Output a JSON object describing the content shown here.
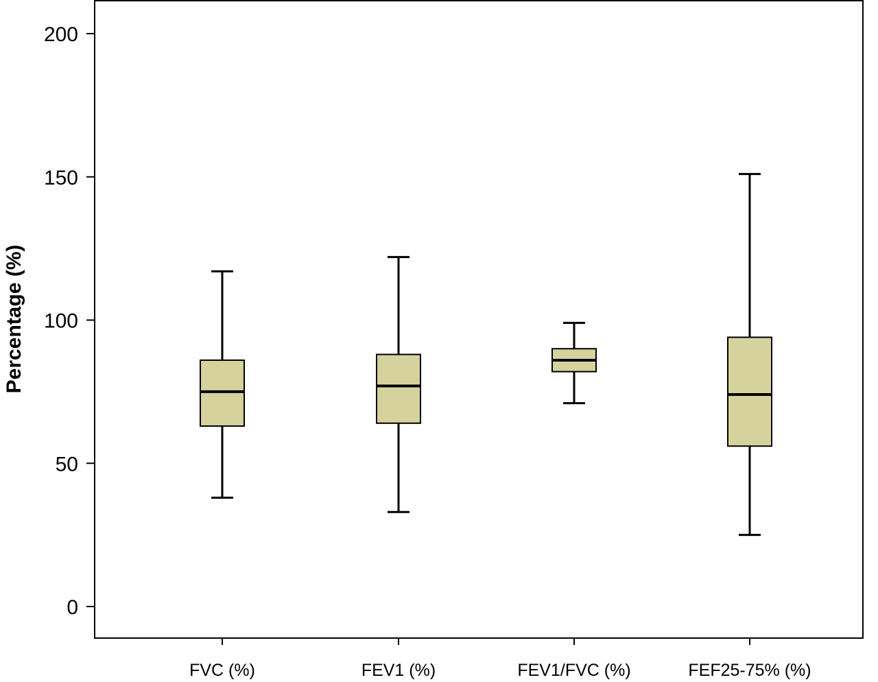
{
  "chart_data": {
    "type": "box",
    "title": "",
    "xlabel": "",
    "ylabel": "Percentage (%)",
    "ylim": [
      -10,
      210
    ],
    "yticks": [
      0,
      50,
      100,
      150,
      200
    ],
    "grid": false,
    "box_fill": "#d6d29e",
    "line_color": "#000000",
    "categories": [
      "FVC (%)",
      "FEV1 (%)",
      "FEV1/FVC (%)",
      "FEF25-75% (%)"
    ],
    "boxes": [
      {
        "label": "FVC (%)",
        "min": 38,
        "q1": 63,
        "median": 75,
        "q3": 86,
        "max": 117
      },
      {
        "label": "FEV1 (%)",
        "min": 33,
        "q1": 64,
        "median": 77,
        "q3": 88,
        "max": 122
      },
      {
        "label": "FEV1/FVC (%)",
        "min": 71,
        "q1": 82,
        "median": 86,
        "q3": 90,
        "max": 99
      },
      {
        "label": "FEF25-75% (%)",
        "min": 25,
        "q1": 56,
        "median": 74,
        "q3": 94,
        "max": 151
      }
    ]
  }
}
